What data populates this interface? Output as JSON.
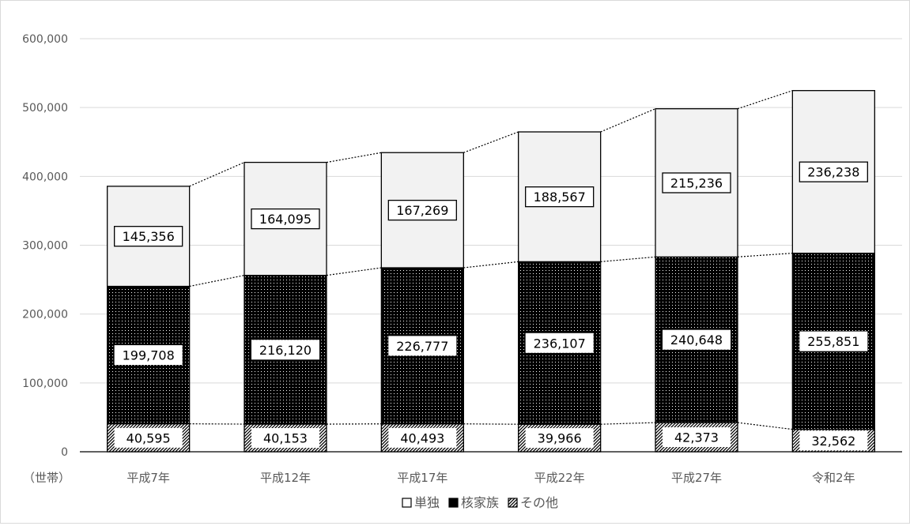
{
  "chart_data": {
    "type": "bar",
    "stacked": true,
    "categories": [
      "平成7年",
      "平成12年",
      "平成17年",
      "平成22年",
      "平成27年",
      "令和2年"
    ],
    "series": [
      {
        "name": "その他",
        "values": [
          40595,
          40153,
          40493,
          39966,
          42373,
          32562
        ]
      },
      {
        "name": "核家族",
        "values": [
          199708,
          216120,
          226777,
          236107,
          240648,
          255851
        ]
      },
      {
        "name": "単独",
        "values": [
          145356,
          164095,
          167269,
          188567,
          215236,
          236238
        ]
      }
    ],
    "data_labels": [
      [
        "40,595",
        "40,153",
        "40,493",
        "39,966",
        "42,373",
        "32,562"
      ],
      [
        "199,708",
        "216,120",
        "226,777",
        "236,107",
        "240,648",
        "255,851"
      ],
      [
        "145,356",
        "164,095",
        "167,269",
        "188,567",
        "215,236",
        "236,238"
      ]
    ],
    "y_ticks": [
      "0",
      "100,000",
      "200,000",
      "300,000",
      "400,000",
      "500,000",
      "600,000"
    ],
    "ylim": [
      0,
      600000
    ],
    "ylabel": "（世帯）",
    "grid": true,
    "legend_position": "bottom",
    "series_lines": true,
    "colors": {
      "単独": "#f2f2f2",
      "核家族": "#000000",
      "その他": "#ffffff",
      "grid": "#d9d9d9",
      "axis_text": "#595959"
    }
  }
}
